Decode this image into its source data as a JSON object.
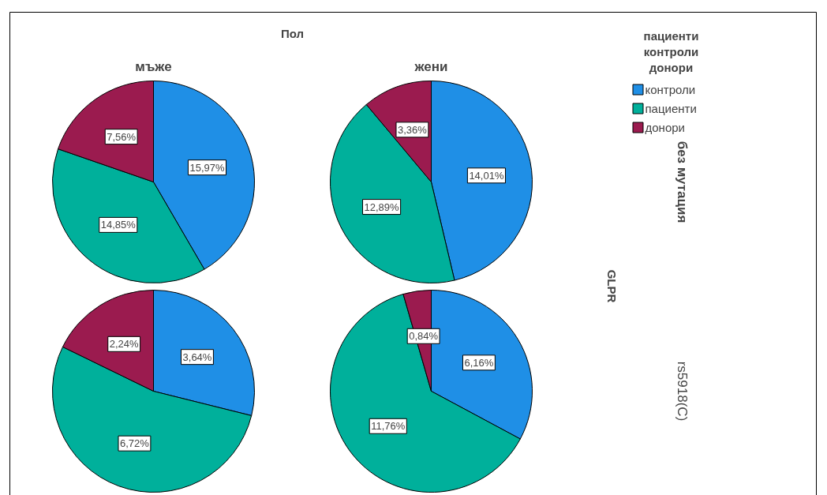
{
  "chart_data": [
    {
      "type": "pie",
      "title": "мъже",
      "annotations": [
        "Пол"
      ],
      "categories": [
        null,
        null,
        null
      ],
      "values": [
        15.97,
        14.85,
        7.56
      ],
      "colors": [
        "#1f8fe6",
        "#00b09b",
        "#9b1b4f"
      ],
      "value_labels": [
        "15,97%",
        "14,85%",
        "7,56%"
      ]
    },
    {
      "type": "pie",
      "title": "жени",
      "ylabel": "без мутация",
      "legend": "right",
      "legend_title": "пациенти\nконтроли\nдонори",
      "categories": [
        "контроли",
        "пациенти",
        "донори"
      ],
      "values": [
        14.01,
        12.89,
        3.36
      ],
      "colors": [
        "#1f8fe6",
        "#00b09b",
        "#9b1b4f"
      ],
      "value_labels": [
        "14,01%",
        "12,89%",
        "3,36%"
      ]
    },
    {
      "type": "pie",
      "categories": [
        null,
        null,
        null
      ],
      "values": [
        3.64,
        6.72,
        2.24
      ],
      "colors": [
        "#1f8fe6",
        "#00b09b",
        "#9b1b4f"
      ],
      "value_labels": [
        "3,64%",
        "6,72%",
        "2,24%"
      ]
    },
    {
      "type": "pie",
      "ylabel": "rs5918(C)",
      "annotations": [
        "GLPR"
      ],
      "categories": [
        null,
        null,
        null
      ],
      "values": [
        6.16,
        11.76,
        0.84
      ],
      "colors": [
        "#1f8fe6",
        "#00b09b",
        "#9b1b4f"
      ],
      "value_labels": [
        "6,16%",
        "11,76%",
        "0,84%"
      ]
    }
  ]
}
